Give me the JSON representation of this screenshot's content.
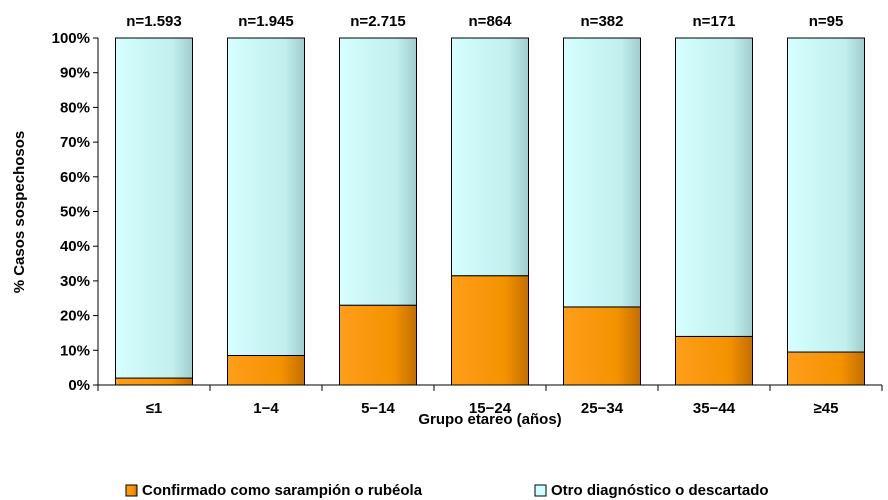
{
  "chart_data": {
    "type": "bar",
    "stacked": true,
    "categories": [
      "≤1",
      "1−4",
      "5−14",
      "15−24",
      "25−34",
      "35−44",
      "≥45"
    ],
    "bar_labels": [
      "n=1.593",
      "n=1.945",
      "n=2.715",
      "n=864",
      "n=382",
      "n=171",
      "n=95"
    ],
    "series": [
      {
        "name": "Confirmado como sarampión o rubéola",
        "values": [
          2,
          8.5,
          23,
          31.5,
          22.5,
          14,
          9.5
        ],
        "color": "#f39200"
      },
      {
        "name": "Otro diagnóstico o descartado",
        "values": [
          98,
          91.5,
          77,
          68.5,
          77.5,
          86,
          90.5
        ],
        "color": "#ccffff"
      }
    ],
    "xlabel": "Grupo etareo (años)",
    "ylabel": "% Casos sospechosos",
    "ylim": [
      0,
      100
    ],
    "yticks": [
      "0%",
      "10%",
      "20%",
      "30%",
      "40%",
      "50%",
      "60%",
      "70%",
      "80%",
      "90%",
      "100%"
    ],
    "grid": false,
    "legend_position": "bottom"
  }
}
